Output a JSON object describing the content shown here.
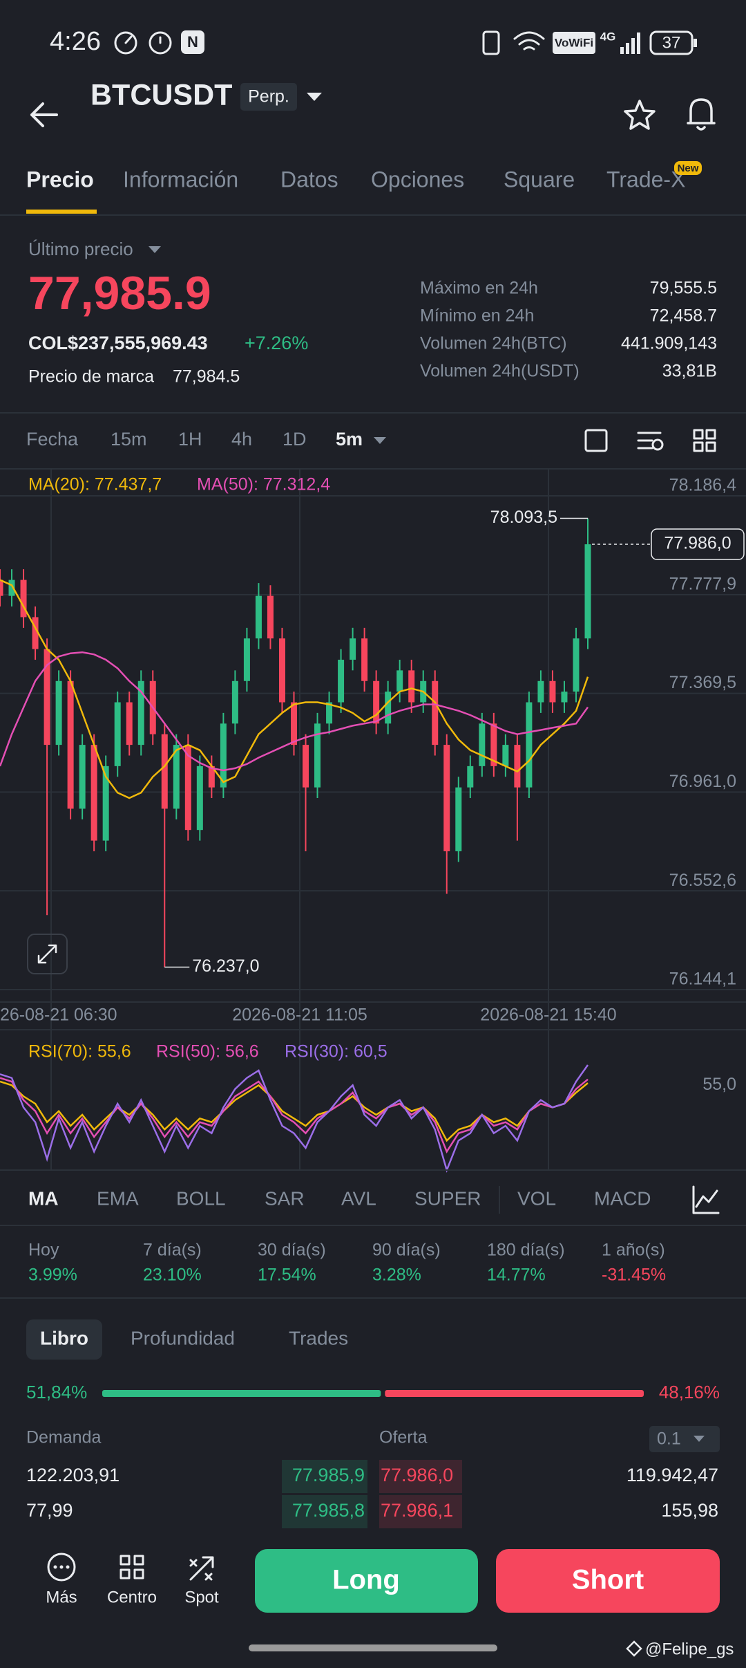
{
  "status_bar": {
    "time": "4:26",
    "network": "VoWiFi",
    "signal": "4G",
    "battery": "37"
  },
  "header": {
    "symbol": "BTCUSDT",
    "badge": "Perp."
  },
  "tabs": {
    "items": [
      "Precio",
      "Información",
      "Datos",
      "Opciones",
      "Square",
      "Trade-X"
    ],
    "active": 0,
    "badge": {
      "text": "New",
      "tab": 5
    }
  },
  "price_info": {
    "label": "Último precio",
    "last_price": "77,985.9",
    "fiat_price": "COL$237,555,969.43",
    "change": "+7.26%",
    "mark_label": "Precio de marca",
    "mark_price": "77,984.5",
    "stats": [
      {
        "label": "Máximo en 24h",
        "value": "79,555.5"
      },
      {
        "label": "Mínimo en 24h",
        "value": "72,458.7"
      },
      {
        "label": "Volumen 24h(BTC)",
        "value": "441.909,143"
      },
      {
        "label": "Volumen 24h(USDT)",
        "value": "33,81B"
      }
    ]
  },
  "timeframes": {
    "items": [
      "Fecha",
      "15m",
      "1H",
      "4h",
      "1D",
      "5m"
    ],
    "active": 5
  },
  "chart_data": [
    {
      "type": "candlestick",
      "up_color": "#2ebd85",
      "down_color": "#f6465d",
      "grid": true,
      "open": [
        77838.7,
        77772.7,
        77838.7,
        77684.6,
        77552.6,
        77156.4,
        77420.5,
        76892.3,
        77156.4,
        76760.3,
        77068.4,
        77332.5,
        77156.4,
        77420.5,
        77200.4,
        76892.3,
        77156.4,
        76804.3,
        77068.4,
        76980.4,
        77244.5,
        77420.5,
        77596.6,
        77772.7,
        77596.6,
        77332.5,
        77156.4,
        76980.4,
        77244.5,
        77332.5,
        77508.6,
        77596.6,
        77420.5,
        77244.5,
        77376.5,
        77464.5,
        77332.5,
        77420.5,
        77156.4,
        76716.3,
        76980.4,
        77068.4,
        77244.5,
        77068.4,
        77156.4,
        76980.4,
        77332.5,
        77420.5,
        77332.5,
        77376.5,
        77596.6
      ],
      "high": [
        77882.7,
        77882.7,
        77882.7,
        77728.6,
        77596.6,
        77464.5,
        77464.5,
        77200.4,
        77200.4,
        77112.4,
        77376.5,
        77376.5,
        77464.5,
        77464.5,
        77244.4,
        77200.4,
        77200.4,
        77112.4,
        77112.4,
        77288.5,
        77464.5,
        77640.6,
        77825.5,
        77816.7,
        77640.6,
        77376.5,
        77200.4,
        77288.5,
        77376.5,
        77552.6,
        77640.6,
        77640.6,
        77464.5,
        77420.5,
        77508.5,
        77508.5,
        77464.5,
        77464.5,
        77200.4,
        77024.4,
        77112.4,
        77288.5,
        77288.5,
        77200.4,
        77200.4,
        77376.5,
        77464.5,
        77464.5,
        77420.5,
        77640.6,
        78093.5
      ],
      "low": [
        77728.7,
        77728.7,
        77640.6,
        77508.6,
        76452.2,
        77112.4,
        76848.3,
        76848.3,
        76716.3,
        76716.3,
        77024.4,
        77112.4,
        77112.4,
        77156.4,
        76237.0,
        76848.3,
        76760.3,
        76760.3,
        76936.4,
        76936.4,
        77200.5,
        77376.5,
        77552.6,
        77552.6,
        77288.5,
        77112.4,
        76716.3,
        76936.4,
        77200.5,
        77288.5,
        77464.6,
        77376.5,
        77200.5,
        77200.5,
        77332.5,
        77288.5,
        77288.5,
        77112.4,
        76540.2,
        76672.3,
        76936.4,
        77024.4,
        77024.4,
        77024.4,
        76760.3,
        76936.4,
        77288.5,
        77288.5,
        77288.5,
        77332.5,
        77552.6
      ],
      "close": [
        77772.7,
        77838.7,
        77684.6,
        77552.6,
        77156.4,
        77420.5,
        76892.3,
        77156.4,
        76760.3,
        77068.4,
        77332.5,
        77156.4,
        77420.5,
        77200.4,
        76892.3,
        77156.4,
        76804.3,
        77068.4,
        76980.4,
        77244.5,
        77420.5,
        77596.6,
        77772.7,
        77596.6,
        77332.5,
        77156.4,
        76980.4,
        77244.5,
        77332.5,
        77508.6,
        77596.6,
        77420.5,
        77244.5,
        77376.5,
        77464.5,
        77332.5,
        77420.5,
        77156.4,
        76716.3,
        76980.4,
        77068.4,
        77244.5,
        77068.4,
        77156.4,
        76980.4,
        77332.5,
        77420.5,
        77332.5,
        77376.5,
        77596.6,
        77986.0
      ],
      "series": [
        {
          "name": "MA(20): 77.437,7",
          "color": "#f0b90b",
          "values": [
            77838.7,
            77816.7,
            77728.6,
            77640.6,
            77552.6,
            77508.6,
            77420.5,
            77288.5,
            77156.4,
            77024.4,
            76958.4,
            76936.3,
            76958.4,
            77024.4,
            77068.4,
            77134.4,
            77156.4,
            77134.4,
            77068.4,
            77002.4,
            77024.4,
            77112.4,
            77200.4,
            77244.5,
            77288.5,
            77323.7,
            77332.5,
            77332.5,
            77323.7,
            77310.5,
            77288.5,
            77253.3,
            77279.7,
            77332.5,
            77376.5,
            77389.7,
            77376.5,
            77332.5,
            77244.5,
            77178.4,
            77134.4,
            77112.4,
            77090.4,
            77068.4,
            77046.4,
            77090.4,
            77156.4,
            77200.4,
            77244.5,
            77297.3,
            77437.7
          ]
        },
        {
          "name": "MA(50): 77.312,4",
          "color": "#e44fb4",
          "values": [
            77068.4,
            77200.4,
            77310.5,
            77420.5,
            77486.5,
            77521.8,
            77535.0,
            77539.4,
            77530.6,
            77508.6,
            77473.3,
            77420.5,
            77376.5,
            77310.5,
            77244.5,
            77178.4,
            77112.4,
            77081.6,
            77059.6,
            77050.8,
            77059.6,
            77077.2,
            77103.6,
            77125.6,
            77147.6,
            77169.6,
            77187.2,
            77200.4,
            77209.2,
            77222.5,
            77235.7,
            77244.5,
            77253.3,
            77279.7,
            77297.3,
            77310.5,
            77323.7,
            77323.7,
            77310.5,
            77297.3,
            77279.7,
            77257.7,
            77235.7,
            77213.6,
            77200.4,
            77209.2,
            77218.0,
            77226.9,
            77235.7,
            77244.5,
            77312.4
          ]
        }
      ],
      "ylim": [
        76144.1,
        78186.4
      ],
      "yticks": [
        {
          "value": 78186.4,
          "label": "78.186,4"
        },
        {
          "value": 77777.9,
          "label": "77.777,9"
        },
        {
          "value": 77369.5,
          "label": "77.369,5"
        },
        {
          "value": 76961.0,
          "label": "76.961,0"
        },
        {
          "value": 76552.6,
          "label": "76.552,6"
        },
        {
          "value": 76144.1,
          "label": "76.144,1"
        }
      ],
      "x_labels": [
        "26-08-21 06:30",
        "2026-08-21 11:05",
        "2026-08-21 15:40"
      ],
      "high_label": {
        "value": 78093.5,
        "label": "78.093,5"
      },
      "low_label": {
        "value": 76237.0,
        "label": "76.237,0"
      },
      "last_price": {
        "value": 77986.0,
        "label": "77.986,0"
      }
    },
    {
      "type": "line",
      "series": [
        {
          "name": "RSI(70): 55,6",
          "color": "#f0b90b",
          "values": [
            56,
            55,
            52,
            50,
            45,
            48,
            44,
            47,
            43,
            46,
            49,
            47,
            50,
            47,
            43,
            46,
            43,
            46,
            45,
            48,
            51,
            53,
            55,
            52,
            48,
            46,
            44,
            47,
            48,
            50,
            52,
            49,
            47,
            49,
            50,
            48,
            49,
            46,
            40,
            43,
            44,
            47,
            45,
            46,
            44,
            48,
            50,
            49,
            50,
            53,
            55.6
          ]
        },
        {
          "name": "RSI(50): 56,6",
          "color": "#e44fb4",
          "values": [
            57,
            56,
            51,
            48,
            42,
            47,
            42,
            46,
            41,
            45,
            49,
            46,
            50,
            46,
            41,
            45,
            41,
            45,
            44,
            48,
            52,
            54,
            56,
            52,
            47,
            45,
            42,
            46,
            48,
            50,
            53,
            48,
            46,
            49,
            50,
            47,
            49,
            45,
            37,
            42,
            43,
            47,
            44,
            45,
            43,
            48,
            50,
            49,
            50,
            54,
            56.6
          ]
        },
        {
          "name": "RSI(30): 60,5",
          "color": "#9b6ee8",
          "values": [
            58,
            57,
            49,
            45,
            35,
            46,
            38,
            45,
            37,
            44,
            50,
            45,
            51,
            44,
            37,
            44,
            38,
            44,
            42,
            49,
            54,
            57,
            59,
            51,
            44,
            42,
            38,
            45,
            48,
            52,
            55,
            47,
            44,
            49,
            51,
            46,
            49,
            43,
            32,
            40,
            42,
            47,
            42,
            44,
            40,
            48,
            51,
            49,
            50,
            56,
            60.5
          ]
        }
      ],
      "ylim": [
        32,
        68
      ],
      "yticks": [
        {
          "value": 55,
          "label": "55,0"
        }
      ]
    }
  ],
  "indicators": {
    "items": [
      "MA",
      "EMA",
      "BOLL",
      "SAR",
      "AVL",
      "SUPER",
      "VOL",
      "MACD"
    ],
    "active": 0
  },
  "performance": [
    {
      "period": "Hoy",
      "change": "3.99%"
    },
    {
      "period": "7 día(s)",
      "change": "23.10%"
    },
    {
      "period": "30 día(s)",
      "change": "17.54%"
    },
    {
      "period": "90 día(s)",
      "change": "3.28%"
    },
    {
      "period": "180 día(s)",
      "change": "14.77%"
    },
    {
      "period": "1 año(s)",
      "change": "-31.45%"
    }
  ],
  "order_book": {
    "tabs": [
      "Libro",
      "Profundidad",
      "Trades"
    ],
    "active": 0,
    "ratio": {
      "bid": {
        "value": 51.84,
        "label": "51,84%"
      },
      "ask": {
        "value": 48.16,
        "label": "48,16%"
      }
    },
    "bid_header": "Demanda",
    "ask_header": "Oferta",
    "precision": "0.1",
    "rows": [
      {
        "bid_quantity": "122.203,91",
        "bid_price": "77.985,9",
        "ask_price": "77.986,0",
        "ask_quantity": "119.942,47"
      },
      {
        "bid_quantity": "77,99",
        "bid_price": "77.985,8",
        "ask_price": "77.986,1",
        "ask_quantity": "155,98"
      }
    ]
  },
  "bottom_bar": {
    "items": [
      "Más",
      "Centro",
      "Spot"
    ],
    "long": "Long",
    "short": "Short"
  },
  "watermark": "@Felipe_gs"
}
